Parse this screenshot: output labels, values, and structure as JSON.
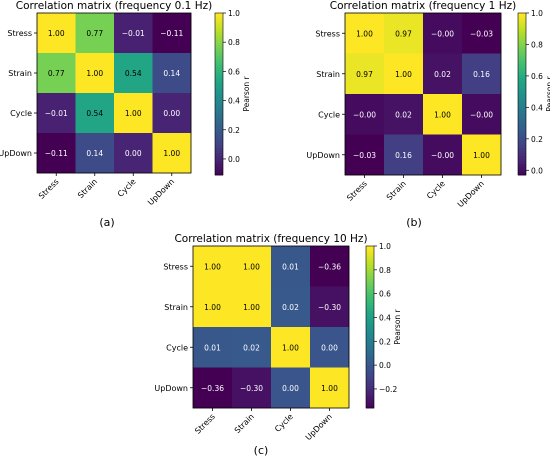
{
  "colors": {
    "colormap": "viridis",
    "axis": "#000000",
    "cell_text_light": "#ffffff",
    "cell_text_dark": "#000000"
  },
  "chart_data": [
    {
      "type": "heatmap",
      "panel_label": "(a)",
      "title": "Correlation matrix (frequency 0.1 Hz)",
      "xlabel": "",
      "ylabel": "",
      "x_categories": [
        "Stress",
        "Strain",
        "Cycle",
        "UpDown"
      ],
      "y_categories": [
        "Stress",
        "Strain",
        "Cycle",
        "UpDown"
      ],
      "values": [
        [
          1.0,
          0.77,
          -0.01,
          -0.11
        ],
        [
          0.77,
          1.0,
          0.54,
          0.14
        ],
        [
          -0.01,
          0.54,
          1.0,
          0.0
        ],
        [
          -0.11,
          0.14,
          0.0,
          1.0
        ]
      ],
      "cell_labels": [
        [
          "1.00",
          "0.77",
          "−0.01",
          "−0.11"
        ],
        [
          "0.77",
          "1.00",
          "0.54",
          "0.14"
        ],
        [
          "−0.01",
          "0.54",
          "1.00",
          "0.00"
        ],
        [
          "−0.11",
          "0.14",
          "0.00",
          "1.00"
        ]
      ],
      "colorbar": {
        "label": "Pearson r",
        "range": [
          -0.11,
          1.0
        ],
        "ticks": [
          0.0,
          0.2,
          0.4,
          0.6,
          0.8,
          1.0
        ],
        "tick_labels": [
          "0.0",
          "0.2",
          "0.4",
          "0.6",
          "0.8",
          "1.0"
        ]
      }
    },
    {
      "type": "heatmap",
      "panel_label": "(b)",
      "title": "Correlation matrix (frequency 1 Hz)",
      "xlabel": "",
      "ylabel": "",
      "x_categories": [
        "Stress",
        "Strain",
        "Cycle",
        "UpDown"
      ],
      "y_categories": [
        "Stress",
        "Strain",
        "Cycle",
        "UpDown"
      ],
      "values": [
        [
          1.0,
          0.97,
          -0.0,
          -0.03
        ],
        [
          0.97,
          1.0,
          0.02,
          0.16
        ],
        [
          -0.0,
          0.02,
          1.0,
          -0.0
        ],
        [
          -0.03,
          0.16,
          -0.0,
          1.0
        ]
      ],
      "cell_labels": [
        [
          "1.00",
          "0.97",
          "−0.00",
          "−0.03"
        ],
        [
          "0.97",
          "1.00",
          "0.02",
          "0.16"
        ],
        [
          "−0.00",
          "0.02",
          "1.00",
          "−0.00"
        ],
        [
          "−0.03",
          "0.16",
          "−0.00",
          "1.00"
        ]
      ],
      "colorbar": {
        "label": "Pearson r",
        "range": [
          -0.03,
          1.0
        ],
        "ticks": [
          0.0,
          0.2,
          0.4,
          0.6,
          0.8,
          1.0
        ],
        "tick_labels": [
          "0.0",
          "0.2",
          "0.4",
          "0.6",
          "0.8",
          "1.0"
        ]
      }
    },
    {
      "type": "heatmap",
      "panel_label": "(c)",
      "title": "Correlation matrix (frequency 10 Hz)",
      "xlabel": "",
      "ylabel": "",
      "x_categories": [
        "Stress",
        "Strain",
        "Cycle",
        "UpDown"
      ],
      "y_categories": [
        "Stress",
        "Strain",
        "Cycle",
        "UpDown"
      ],
      "values": [
        [
          1.0,
          1.0,
          0.01,
          -0.36
        ],
        [
          1.0,
          1.0,
          0.02,
          -0.3
        ],
        [
          0.01,
          0.02,
          1.0,
          0.0
        ],
        [
          -0.36,
          -0.3,
          0.0,
          1.0
        ]
      ],
      "cell_labels": [
        [
          "1.00",
          "1.00",
          "0.01",
          "−0.36"
        ],
        [
          "1.00",
          "1.00",
          "0.02",
          "−0.30"
        ],
        [
          "0.01",
          "0.02",
          "1.00",
          "0.00"
        ],
        [
          "−0.36",
          "−0.30",
          "0.00",
          "1.00"
        ]
      ],
      "colorbar": {
        "label": "Pearson r",
        "range": [
          -0.36,
          1.0
        ],
        "ticks": [
          -0.2,
          0.0,
          0.2,
          0.4,
          0.6,
          0.8,
          1.0
        ],
        "tick_labels": [
          "−0.2",
          "0.0",
          "0.2",
          "0.4",
          "0.6",
          "0.8",
          "1.0"
        ]
      }
    }
  ]
}
